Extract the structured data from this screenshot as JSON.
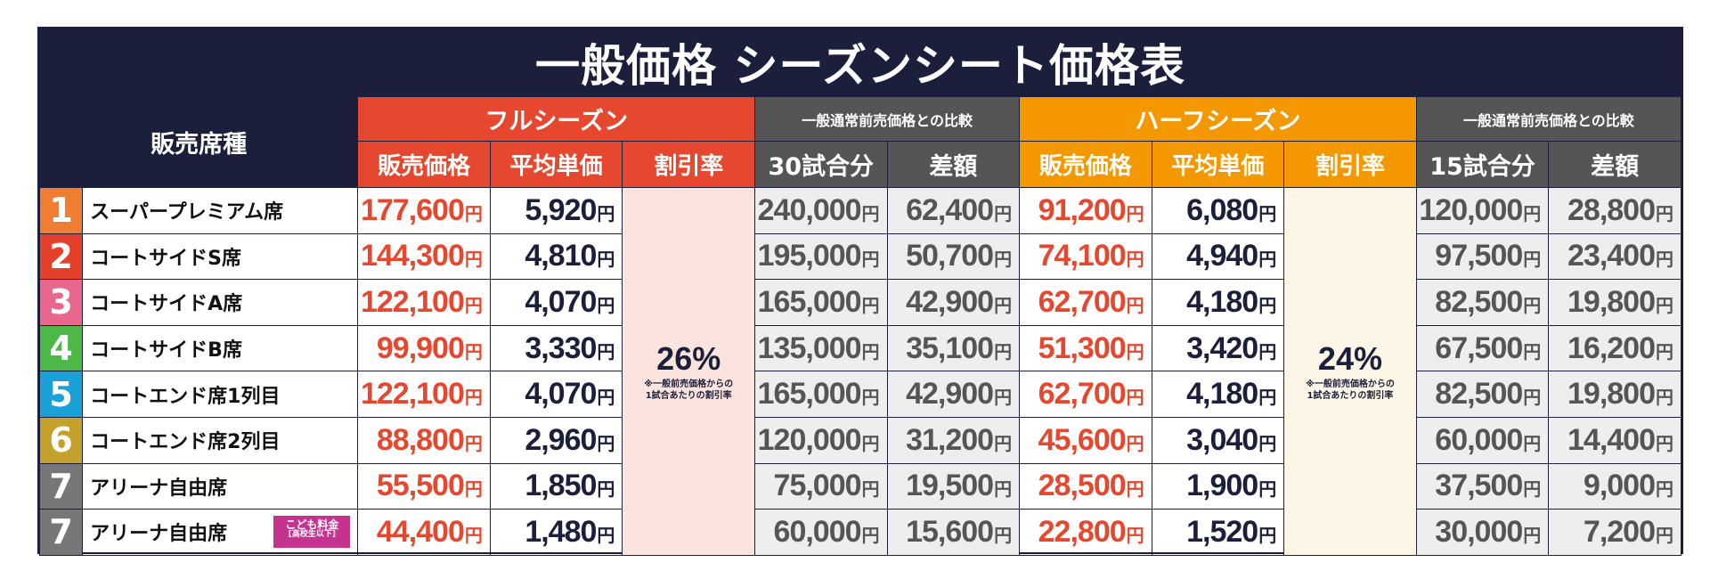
{
  "title": "一般価格 シーズンシート価格表",
  "headers": {
    "seat_type": "販売席種",
    "full_season": "フルシーズン",
    "half_season": "ハーフシーズン",
    "full_compare": "一般通常前売価格との比較",
    "half_compare": "一般通常前売価格との比較",
    "full_sub": [
      "販売価格",
      "平均単価",
      "割引率"
    ],
    "full_compare_sub": [
      "30試合分",
      "差額"
    ],
    "half_sub": [
      "販売価格",
      "平均単価",
      "割引率"
    ],
    "half_compare_sub": [
      "15試合分",
      "差額"
    ]
  },
  "yen": "円",
  "full_discount": {
    "value": "26%",
    "note_line1": "※一般前売価格からの",
    "note_line2": "1試合あたりの割引率"
  },
  "half_discount": {
    "value": "24%",
    "note_line1": "※一般前売価格からの",
    "note_line2": "1試合あたりの割引率"
  },
  "rows": [
    {
      "num": "1",
      "color": "#ef7d32",
      "seat": "スーパープレミアム席",
      "full_price": "177,600",
      "full_avg": "5,920",
      "full_30": "240,000",
      "full_diff": "62,400",
      "half_price": "91,200",
      "half_avg": "6,080",
      "half_15": "120,000",
      "half_diff": "28,800"
    },
    {
      "num": "2",
      "color": "#e5402b",
      "seat": "コートサイドS席",
      "full_price": "144,300",
      "full_avg": "4,810",
      "full_30": "195,000",
      "full_diff": "50,700",
      "half_price": "74,100",
      "half_avg": "4,940",
      "half_15": "97,500",
      "half_diff": "23,400"
    },
    {
      "num": "3",
      "color": "#e9668f",
      "seat": "コートサイドA席",
      "full_price": "122,100",
      "full_avg": "4,070",
      "full_30": "165,000",
      "full_diff": "42,900",
      "half_price": "62,700",
      "half_avg": "4,180",
      "half_15": "82,500",
      "half_diff": "19,800"
    },
    {
      "num": "4",
      "color": "#4cb848",
      "seat": "コートサイドB席",
      "full_price": "99,900",
      "full_avg": "3,330",
      "full_30": "135,000",
      "full_diff": "35,100",
      "half_price": "51,300",
      "half_avg": "3,420",
      "half_15": "67,500",
      "half_diff": "16,200"
    },
    {
      "num": "5",
      "color": "#1aa2d8",
      "seat": "コートエンド席1列目",
      "full_price": "122,100",
      "full_avg": "4,070",
      "full_30": "165,000",
      "full_diff": "42,900",
      "half_price": "62,700",
      "half_avg": "4,180",
      "half_15": "82,500",
      "half_diff": "19,800"
    },
    {
      "num": "6",
      "color": "#c4a12a",
      "seat": "コートエンド席2列目",
      "full_price": "88,800",
      "full_avg": "2,960",
      "full_30": "120,000",
      "full_diff": "31,200",
      "half_price": "45,600",
      "half_avg": "3,040",
      "half_15": "60,000",
      "half_diff": "14,400"
    },
    {
      "num": "7",
      "color": "#777777",
      "seat": "アリーナ自由席",
      "full_price": "55,500",
      "full_avg": "1,850",
      "full_30": "75,000",
      "full_diff": "19,500",
      "half_price": "28,500",
      "half_avg": "1,900",
      "half_15": "37,500",
      "half_diff": "9,000"
    },
    {
      "num": "7",
      "color": "#777777",
      "seat": "アリーナ自由席",
      "badge": "こども料金",
      "badge_sub": "[高校生以下]",
      "full_price": "44,400",
      "full_avg": "1,480",
      "full_30": "60,000",
      "full_diff": "15,600",
      "half_price": "22,800",
      "half_avg": "1,520",
      "half_15": "30,000",
      "half_diff": "7,200"
    }
  ]
}
